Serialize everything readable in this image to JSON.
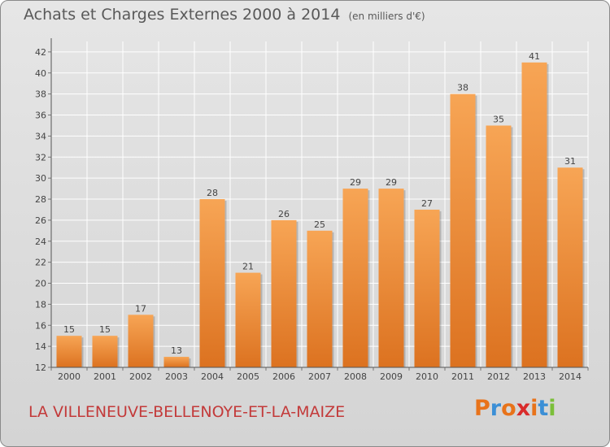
{
  "title": "Achats et Charges Externes 2000 à 2014",
  "subtitle": "(en milliers d'€)",
  "commune": "LA VILLENEUVE-BELLENOYE-ET-LA-MAIZE",
  "logo": {
    "text": "Proxiti",
    "colors": [
      "#e8731a",
      "#3b8fd6",
      "#e8731a",
      "#d92b2b",
      "#e8731a",
      "#3b8fd6",
      "#7bbf3a"
    ]
  },
  "colors": {
    "bar_top": "#f7a555",
    "bar_bottom": "#dc7220",
    "grid": "#ffffff",
    "title": "#595959",
    "commune": "#c33a3a"
  },
  "chart_data": {
    "type": "bar",
    "title": "Achats et Charges Externes 2000 à 2014",
    "xlabel": "",
    "ylabel": "",
    "categories": [
      "2000",
      "2001",
      "2002",
      "2003",
      "2004",
      "2005",
      "2006",
      "2007",
      "2008",
      "2009",
      "2010",
      "2011",
      "2012",
      "2013",
      "2014"
    ],
    "values": [
      15,
      15,
      17,
      13,
      28,
      21,
      26,
      25,
      29,
      29,
      27,
      38,
      35,
      41,
      31
    ],
    "ylim": [
      12,
      43
    ],
    "yticks": [
      12,
      14,
      16,
      18,
      20,
      22,
      24,
      26,
      28,
      30,
      32,
      34,
      36,
      38,
      40,
      42
    ],
    "grid": true
  }
}
